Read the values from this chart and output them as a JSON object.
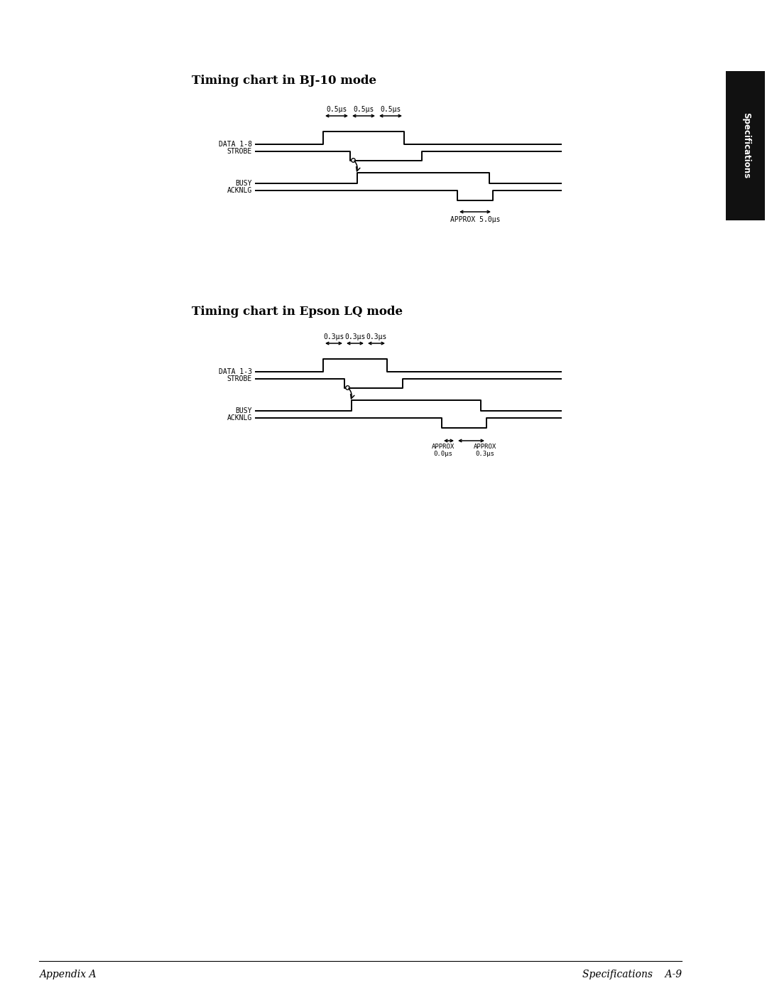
{
  "title1": "Timing chart in BJ-10 mode",
  "title2": "Timing chart in Epson LQ mode",
  "bg_color": "#ffffff",
  "line_color": "#000000",
  "text_color": "#000000",
  "footer_left": "Appendix A",
  "footer_right": "Specifications    A-9",
  "sidebar_text": "Specifications",
  "bj10": {
    "timing_labels": [
      "0.5μs",
      "0.5μs",
      "0.5μs"
    ],
    "bottom_label": "APPROX 5.0μs"
  },
  "epson": {
    "timing_labels": [
      "0.3μs",
      "0.3μs",
      "0.3μs"
    ],
    "bottom_label1": "APPROX\n0.0μs",
    "bottom_label2": "APPROX\n0.3μs"
  }
}
